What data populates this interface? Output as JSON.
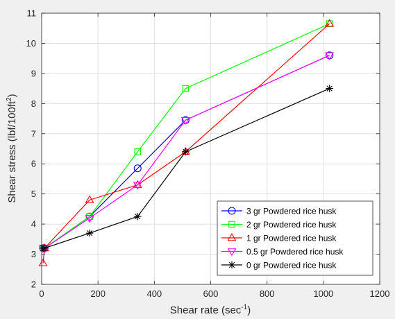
{
  "chart_data": {
    "type": "line",
    "xlabel": "Shear rate (sec",
    "xlabel_sup": "-1",
    "xlabel_end": ")",
    "ylabel": "Shear stress (lbf/100ft",
    "ylabel_sup": "2",
    "ylabel_end": ")",
    "xlim": [
      0,
      1200
    ],
    "ylim": [
      2,
      11
    ],
    "xticks": [
      0,
      200,
      400,
      600,
      800,
      1000,
      1200
    ],
    "yticks": [
      2,
      3,
      4,
      5,
      6,
      7,
      8,
      9,
      10,
      11
    ],
    "grid": true,
    "legend_position": "bottom-right",
    "series": [
      {
        "name": "3 gr Powdered rice husk",
        "color": "#0000ff",
        "marker": "circle",
        "x": [
          5.11,
          10.22,
          170.3,
          340.6,
          510.9,
          1021.8
        ],
        "y": [
          3.2,
          3.2,
          4.25,
          5.85,
          7.45,
          9.6
        ]
      },
      {
        "name": "2 gr Powdered rice husk",
        "color": "#00ff00",
        "marker": "square",
        "x": [
          5.11,
          10.22,
          170.3,
          340.6,
          510.9,
          1021.8
        ],
        "y": [
          3.2,
          3.2,
          4.25,
          6.4,
          8.5,
          10.65
        ]
      },
      {
        "name": "1 gr Powdered rice husk",
        "color": "#ff0000",
        "marker": "triangle-up",
        "x": [
          5.11,
          10.22,
          170.3,
          340.6,
          510.9,
          1021.8
        ],
        "y": [
          2.7,
          3.2,
          4.8,
          5.3,
          6.4,
          10.65
        ]
      },
      {
        "name": "0.5 gr Powdered rice husk",
        "color": "#ff00ff",
        "marker": "triangle-down",
        "x": [
          5.11,
          10.22,
          170.3,
          340.6,
          510.9,
          1021.8
        ],
        "y": [
          3.2,
          3.2,
          4.2,
          5.3,
          7.45,
          9.6
        ]
      },
      {
        "name": "0 gr Powdered rice husk",
        "color": "#000000",
        "marker": "asterisk",
        "x": [
          5.11,
          10.22,
          170.3,
          340.6,
          510.9,
          1021.8
        ],
        "y": [
          3.2,
          3.2,
          3.7,
          4.25,
          6.4,
          8.5
        ]
      }
    ]
  }
}
